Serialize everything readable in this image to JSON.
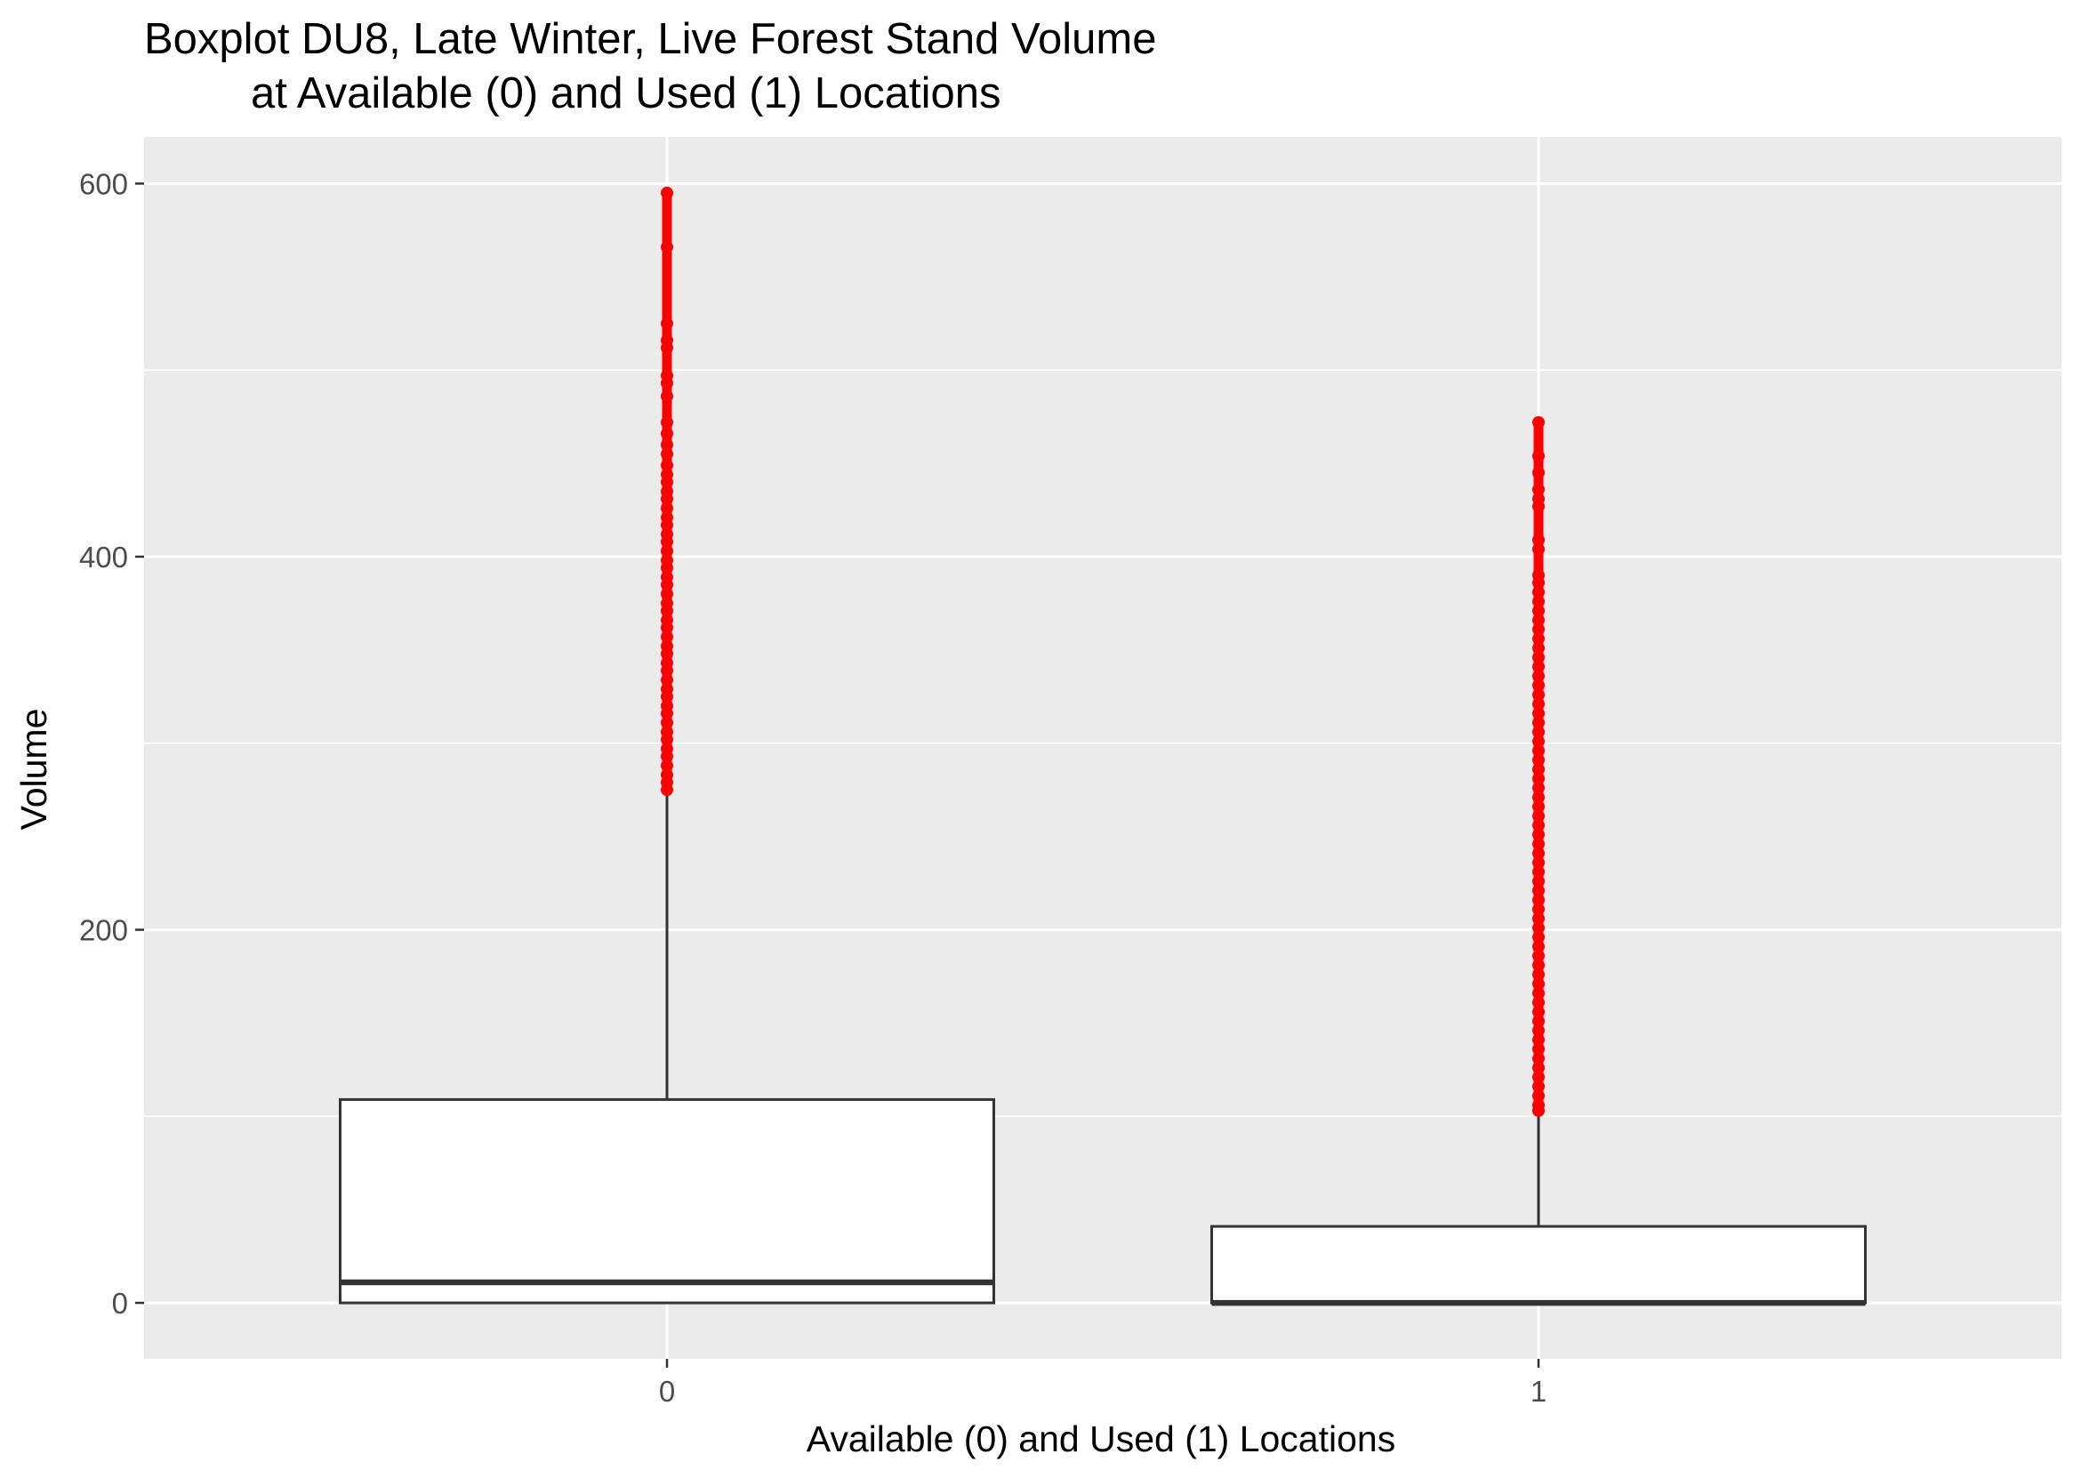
{
  "chart_data": {
    "type": "boxplot",
    "title": "Boxplot DU8, Late Winter, Live Forest Stand Volume",
    "subtitle": "at Available (0) and Used (1) Locations",
    "xlabel": "Available (0) and Used (1) Locations",
    "ylabel": "Volume",
    "categories": [
      "0",
      "1"
    ],
    "ylim": [
      -30,
      625
    ],
    "yticks": [
      0,
      200,
      400,
      600
    ],
    "grid": true,
    "legend": "none",
    "colors": {
      "panel_background": "#ebebeb",
      "grid": "#ffffff",
      "box_fill": "#ffffff",
      "box_line": "#333333",
      "outlier": "#ff0000",
      "tick_label": "#4d4d4d"
    },
    "series": [
      {
        "category": "0",
        "whisker_low": 0,
        "q1": 0,
        "median": 11,
        "q3": 109,
        "whisker_high": 272,
        "outliers": [
          595,
          566,
          525,
          516,
          512,
          497,
          493,
          486,
          472,
          466,
          460,
          455,
          449,
          444,
          440,
          435,
          431,
          426,
          421,
          417,
          412,
          408,
          403,
          398,
          394,
          389,
          385,
          380,
          375,
          371,
          366,
          362,
          357,
          352,
          348,
          343,
          339,
          334,
          329,
          325,
          320,
          316,
          311,
          306,
          302,
          297,
          293,
          288,
          283,
          279,
          275
        ]
      },
      {
        "category": "1",
        "whisker_low": 0,
        "q1": 0,
        "median": 0,
        "q3": 41,
        "whisker_high": 101,
        "outliers": [
          472,
          454,
          445,
          436,
          431,
          427,
          409,
          404,
          390,
          386,
          381,
          376,
          371,
          366,
          361,
          356,
          351,
          346,
          341,
          336,
          331,
          326,
          321,
          316,
          311,
          306,
          301,
          296,
          291,
          286,
          281,
          276,
          271,
          266,
          261,
          256,
          251,
          246,
          241,
          236,
          231,
          226,
          221,
          216,
          211,
          206,
          201,
          196,
          191,
          186,
          181,
          176,
          171,
          166,
          161,
          156,
          151,
          146,
          141,
          136,
          131,
          126,
          121,
          116,
          111,
          106,
          103
        ]
      }
    ]
  }
}
